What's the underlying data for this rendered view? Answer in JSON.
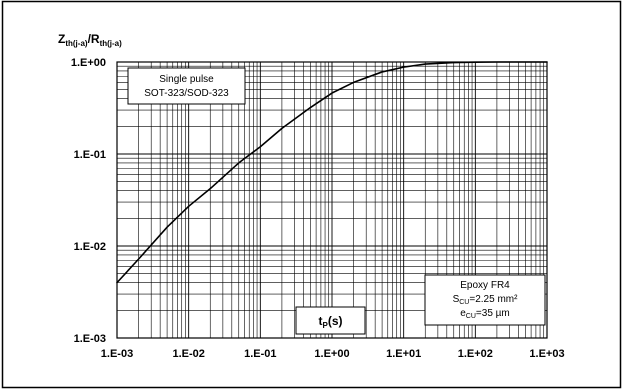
{
  "chart_data": {
    "type": "line",
    "title": "",
    "scale": {
      "x": "log",
      "y": "log"
    },
    "xlim": [
      0.001,
      1000
    ],
    "ylim": [
      0.001,
      1
    ],
    "grid": true,
    "xticks": [
      "1.E-03",
      "1.E-02",
      "1.E-01",
      "1.E+00",
      "1.E+01",
      "1.E+02",
      "1.E+03"
    ],
    "yticks": [
      "1.E-03",
      "1.E-02",
      "1.E-01",
      "1.E+00"
    ],
    "ylabel": {
      "main": "Z",
      "sub1": "th(j-a)",
      "sep": "/R",
      "sub2": "th(j-a)"
    },
    "xlabel": {
      "main": "t",
      "sub": "P",
      "tail": "(s)"
    },
    "series": [
      {
        "name": "",
        "x": [
          0.001,
          0.002,
          0.005,
          0.01,
          0.02,
          0.05,
          0.1,
          0.2,
          0.5,
          1,
          2,
          5,
          10,
          20,
          50,
          100,
          200,
          500,
          1000
        ],
        "y": [
          0.004,
          0.0072,
          0.016,
          0.027,
          0.042,
          0.08,
          0.12,
          0.19,
          0.32,
          0.46,
          0.6,
          0.78,
          0.88,
          0.95,
          0.985,
          0.995,
          1.0,
          1.0,
          1.0
        ]
      }
    ],
    "annotations": [
      {
        "id": "pulse",
        "lines": [
          "Single pulse",
          "SOT-323/SOD-323"
        ]
      },
      {
        "id": "board",
        "line1": "Epoxy FR4",
        "line2": {
          "main": "S",
          "sub": "CU",
          "tail": "=2.25 mm²"
        },
        "line3": {
          "main": "e",
          "sub": "CU",
          "tail": "=35 µm"
        }
      }
    ]
  }
}
